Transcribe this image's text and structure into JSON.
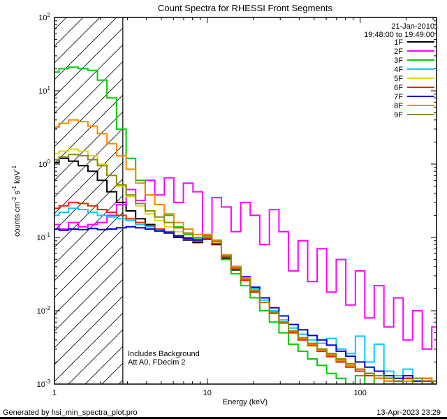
{
  "title": "Count Spectra for RHESSI Front Segments",
  "header": {
    "date": "21-Jan-2010",
    "time_range": "19:48:00 to 19:49:00"
  },
  "annotations": {
    "background": "Includes Background",
    "attenuator": "Att A0, FDecim 2"
  },
  "footer": {
    "generated_by": "Generated by hsi_min_spectra_plot.pro",
    "timestamp": "13-Apr-2023 23:29"
  },
  "chart_data": {
    "type": "line",
    "title": "Count Spectra for RHESSI Front Segments",
    "x_scale": "log",
    "y_scale": "log",
    "xlim": [
      1,
      316
    ],
    "ylim": [
      0.001,
      100
    ],
    "xlabel": "Energy (keV)",
    "ylabel": "counts cm-2 s-1 keV-1",
    "ylabel_parts": [
      [
        "counts cm",
        0
      ],
      [
        "-2",
        1
      ],
      [
        " s",
        0
      ],
      [
        "-1",
        1
      ],
      [
        " keV",
        0
      ],
      [
        "-1",
        1
      ]
    ],
    "x_tick_labels": [
      {
        "v": 1,
        "label": "1"
      },
      {
        "v": 10,
        "label": "10"
      },
      {
        "v": 100,
        "label": "100"
      }
    ],
    "y_tick_exponents": [
      2,
      1,
      0,
      -1,
      -2,
      -3
    ],
    "hatched_region_kev": [
      1,
      2.8
    ],
    "legend_position": "top-right",
    "grid": false,
    "x_kev": [
      1.0,
      1.15,
      1.33,
      1.54,
      1.78,
      2.05,
      2.37,
      2.74,
      3.16,
      3.65,
      4.22,
      4.87,
      5.62,
      6.49,
      7.5,
      8.66,
      10,
      11.5,
      13.3,
      15.4,
      17.8,
      20.5,
      23.7,
      27.4,
      31.6,
      36.5,
      42.2,
      48.7,
      56.2,
      64.9,
      75,
      86.6,
      100,
      115,
      133,
      154,
      178,
      205,
      237,
      274,
      316
    ],
    "series": [
      {
        "name": "1F",
        "color": "#000000",
        "values": [
          1.05,
          1.2,
          1.1,
          0.95,
          0.8,
          0.6,
          0.42,
          0.3,
          0.23,
          0.18,
          0.15,
          0.13,
          0.115,
          0.1,
          0.092,
          0.085,
          0.095,
          0.08,
          0.052,
          0.036,
          0.026,
          0.018,
          0.013,
          0.0095,
          0.007,
          0.0052,
          0.0042,
          0.0035,
          0.003,
          0.0026,
          0.0021,
          0.0018,
          0.0016,
          0.0014,
          0.0013,
          0.0012,
          0.0011,
          0.0012,
          0.001,
          0.0011,
          0.001
        ]
      },
      {
        "name": "2F",
        "color": "#ff00ff",
        "values": [
          0.15,
          0.13,
          0.16,
          0.14,
          0.15,
          0.16,
          0.2,
          0.28,
          0.45,
          0.32,
          0.6,
          0.38,
          0.65,
          0.3,
          0.55,
          0.42,
          0.1,
          0.35,
          0.26,
          0.12,
          0.3,
          0.2,
          0.08,
          0.24,
          0.12,
          0.035,
          0.09,
          0.025,
          0.07,
          0.018,
          0.05,
          0.012,
          0.035,
          0.008,
          0.022,
          0.006,
          0.015,
          0.004,
          0.01,
          0.003,
          0.006
        ]
      },
      {
        "name": "3F",
        "color": "#00cc00",
        "values": [
          18,
          20,
          21,
          20,
          19,
          14,
          8,
          3,
          1.2,
          0.6,
          0.38,
          0.28,
          0.2,
          0.14,
          0.11,
          0.095,
          0.1,
          0.085,
          0.05,
          0.032,
          0.022,
          0.015,
          0.01,
          0.007,
          0.005,
          0.0035,
          0.0028,
          0.0022,
          0.0018,
          0.0014,
          0.0012,
          0.001,
          0.0013,
          0.001,
          0.0012,
          0.001,
          0.0011,
          0.001,
          0.0012,
          0.001,
          0.0011
        ]
      },
      {
        "name": "4F",
        "color": "#00ccff",
        "values": [
          0.2,
          0.22,
          0.25,
          0.24,
          0.22,
          0.2,
          0.19,
          0.18,
          0.17,
          0.15,
          0.14,
          0.125,
          0.115,
          0.105,
          0.095,
          0.088,
          0.11,
          0.09,
          0.055,
          0.04,
          0.028,
          0.02,
          0.014,
          0.01,
          0.0075,
          0.0058,
          0.0048,
          0.004,
          0.0036,
          0.0042,
          0.003,
          0.0026,
          0.0045,
          0.002,
          0.0035,
          0.0015,
          0.0013,
          0.0016,
          0.0011,
          0.0012,
          0.001
        ]
      },
      {
        "name": "5F",
        "color": "#dddd00",
        "values": [
          1.4,
          1.5,
          1.6,
          1.5,
          1.3,
          1.0,
          0.7,
          0.5,
          0.36,
          0.27,
          0.21,
          0.17,
          0.14,
          0.12,
          0.1,
          0.092,
          0.1,
          0.085,
          0.055,
          0.038,
          0.027,
          0.019,
          0.013,
          0.0095,
          0.007,
          0.005,
          0.004,
          0.0033,
          0.0028,
          0.0023,
          0.002,
          0.0017,
          0.0015,
          0.0013,
          0.0012,
          0.0011,
          0.001,
          0.0011,
          0.001,
          0.0012,
          0.001
        ]
      },
      {
        "name": "6F",
        "color": "#ee2200",
        "values": [
          0.25,
          0.27,
          0.3,
          0.29,
          0.27,
          0.24,
          0.22,
          0.2,
          0.18,
          0.16,
          0.145,
          0.13,
          0.12,
          0.105,
          0.095,
          0.088,
          0.098,
          0.082,
          0.054,
          0.037,
          0.026,
          0.018,
          0.013,
          0.0092,
          0.0068,
          0.005,
          0.004,
          0.0034,
          0.0028,
          0.0024,
          0.002,
          0.0017,
          0.0015,
          0.0013,
          0.0012,
          0.0011,
          0.001,
          0.0012,
          0.001,
          0.0011,
          0.001
        ]
      },
      {
        "name": "7F",
        "color": "#0000dd",
        "values": [
          0.13,
          0.125,
          0.13,
          0.128,
          0.132,
          0.128,
          0.13,
          0.135,
          0.14,
          0.135,
          0.13,
          0.122,
          0.115,
          0.105,
          0.098,
          0.092,
          0.105,
          0.088,
          0.056,
          0.04,
          0.029,
          0.021,
          0.015,
          0.011,
          0.0085,
          0.0065,
          0.0055,
          0.0046,
          0.004,
          0.0034,
          0.0028,
          0.0024,
          0.002,
          0.0017,
          0.0015,
          0.0013,
          0.0012,
          0.0013,
          0.0011,
          0.0012,
          0.001
        ]
      },
      {
        "name": "8F",
        "color": "#ff8800",
        "values": [
          3.2,
          3.6,
          4.0,
          3.8,
          3.3,
          2.6,
          1.9,
          1.3,
          0.85,
          0.55,
          0.38,
          0.28,
          0.21,
          0.16,
          0.13,
          0.11,
          0.11,
          0.092,
          0.058,
          0.04,
          0.028,
          0.019,
          0.013,
          0.0095,
          0.007,
          0.0052,
          0.0042,
          0.0035,
          0.0029,
          0.0025,
          0.0021,
          0.0018,
          0.0016,
          0.0014,
          0.0012,
          0.0011,
          0.001,
          0.0011,
          0.001,
          0.0012,
          0.001
        ]
      },
      {
        "name": "9F",
        "color": "#8b8b00",
        "values": [
          1.15,
          1.25,
          1.35,
          1.3,
          1.15,
          0.95,
          0.7,
          0.52,
          0.38,
          0.29,
          0.23,
          0.19,
          0.16,
          0.135,
          0.115,
          0.1,
          0.105,
          0.088,
          0.056,
          0.039,
          0.027,
          0.019,
          0.013,
          0.0095,
          0.007,
          0.0053,
          0.0043,
          0.0036,
          0.003,
          0.0026,
          0.0022,
          0.0019,
          0.0016,
          0.0014,
          0.0013,
          0.0012,
          0.0011,
          0.001,
          0.0012,
          0.001,
          0.0011
        ]
      }
    ]
  }
}
